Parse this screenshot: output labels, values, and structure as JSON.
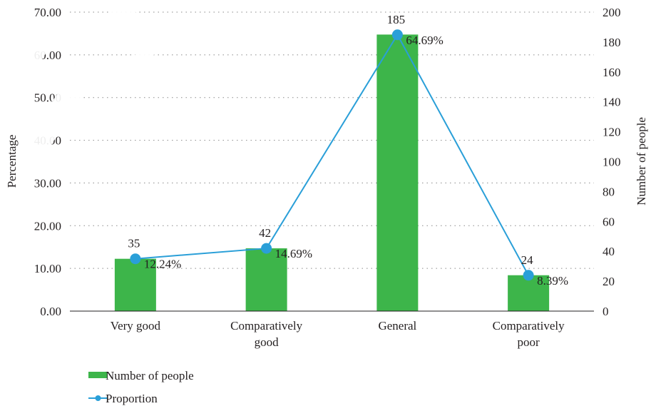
{
  "chart_data": {
    "type": "bar",
    "categories": [
      "Very good",
      "Comparatively good",
      "General",
      "Comparatively poor"
    ],
    "category_lines": [
      [
        "Very good"
      ],
      [
        "Comparatively",
        "good"
      ],
      [
        "General"
      ],
      [
        "Comparatively",
        "poor"
      ]
    ],
    "series": [
      {
        "name": "Number of people",
        "type": "bar",
        "axis": "right",
        "values": [
          35,
          42,
          185,
          24
        ],
        "labels": [
          "35",
          "42",
          "185",
          "24"
        ],
        "color": "#3db54a"
      },
      {
        "name": "Proportion",
        "type": "line",
        "axis": "left",
        "values": [
          12.24,
          14.69,
          64.69,
          8.39
        ],
        "labels": [
          "12.24%",
          "14.69%",
          "64.69%",
          "8.39%"
        ],
        "color": "#2a9fd8"
      }
    ],
    "ylabel_left": "Percentage",
    "ylabel_right": "Number of people",
    "ylim_left": [
      0,
      70
    ],
    "ylim_right": [
      0,
      200
    ],
    "left_ticks": [
      "0.00",
      "10.00",
      "20.00",
      "30.00",
      "40.00",
      "50.00",
      "60.00",
      "70.00"
    ],
    "right_ticks": [
      "0",
      "20",
      "40",
      "60",
      "80",
      "100",
      "120",
      "140",
      "160",
      "180",
      "200"
    ],
    "grid": "horizontal-dotted",
    "legend_position": "bottom-left"
  }
}
